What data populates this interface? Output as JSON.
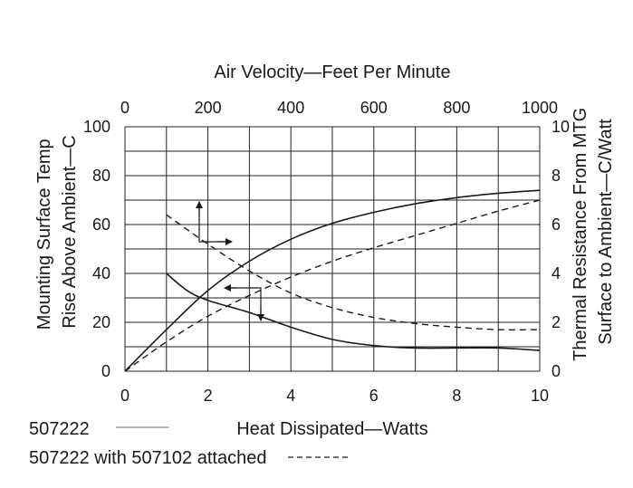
{
  "chart_data": {
    "type": "line",
    "top_xlabel": "Air Velocity—Feet Per Minute",
    "top_xticks": [
      "0",
      "200",
      "400",
      "600",
      "800",
      "1000"
    ],
    "top_xlim": [
      0,
      1000
    ],
    "xlabel": "Heat Dissipated—Watts",
    "xticks": [
      "0",
      "2",
      "4",
      "6",
      "8",
      "10"
    ],
    "xlim": [
      0,
      10
    ],
    "ylabel_left": [
      "Mounting Surface Temp",
      "Rise Above Ambient—C"
    ],
    "yticks_left": [
      "0",
      "20",
      "40",
      "60",
      "80",
      "100"
    ],
    "ylim_left": [
      0,
      100
    ],
    "ylabel_right": [
      "Thermal Resistance From MTG",
      "Surface to Ambient—C/Watt"
    ],
    "yticks_right": [
      "0",
      "2",
      "4",
      "6",
      "8",
      "10"
    ],
    "ylim_right": [
      0,
      10
    ],
    "grid": true,
    "legend": {
      "placement": "bottom-left",
      "entries": [
        {
          "label": "507222",
          "style": "solid"
        },
        {
          "label": "507222 with 507102 attached",
          "style": "dashed"
        }
      ]
    },
    "series": [
      {
        "series_key": "507222",
        "style": "solid",
        "quantity": "temperature rise vs heat dissipated",
        "x_axis": "bottom",
        "y_axis": "left",
        "x": [
          0,
          1,
          2,
          3,
          4,
          5,
          6,
          7,
          8,
          9,
          10
        ],
        "y": [
          0,
          17,
          33,
          45,
          54,
          60.5,
          65,
          68.5,
          71,
          72.8,
          74
        ]
      },
      {
        "series_key": "507222 with 507102 attached",
        "style": "dashed",
        "quantity": "temperature rise vs heat dissipated",
        "x_axis": "bottom",
        "y_axis": "left",
        "x": [
          0,
          1,
          2,
          3,
          4,
          5,
          6,
          7,
          8,
          9,
          10
        ],
        "y": [
          0,
          12,
          22.5,
          31,
          38.5,
          45,
          50.5,
          55.5,
          60.5,
          65.5,
          70
        ]
      },
      {
        "series_key": "507222",
        "style": "solid",
        "quantity": "thermal resistance vs air velocity",
        "x_axis": "top",
        "y_axis": "right",
        "x": [
          100,
          150,
          200,
          300,
          400,
          500,
          600,
          700,
          800,
          900,
          1000
        ],
        "y": [
          4.0,
          3.3,
          2.9,
          2.4,
          1.8,
          1.3,
          1.05,
          0.95,
          0.95,
          0.95,
          0.85
        ]
      },
      {
        "series_key": "507222 with 507102 attached",
        "style": "dashed",
        "quantity": "thermal resistance vs air velocity",
        "x_axis": "top",
        "y_axis": "right",
        "x": [
          100,
          200,
          300,
          400,
          500,
          600,
          700,
          800,
          900,
          1000
        ],
        "y": [
          6.4,
          5.2,
          4.1,
          3.2,
          2.6,
          2.2,
          1.95,
          1.8,
          1.7,
          1.7
        ]
      }
    ]
  },
  "colors": {
    "background": "#ffffff",
    "ink": "#1a1a1a",
    "legend_solid_swatch": "#9a9a9a"
  }
}
